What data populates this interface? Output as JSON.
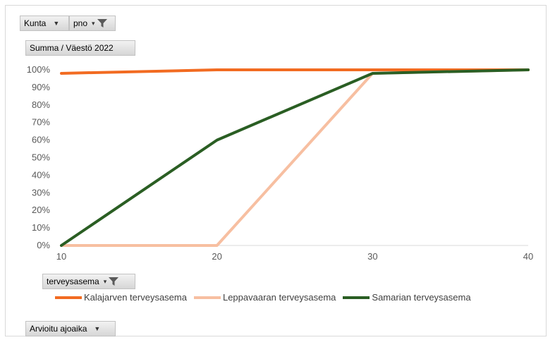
{
  "filters": {
    "kunta": {
      "label": "Kunta"
    },
    "pno": {
      "label": "pno"
    },
    "summa": {
      "label": "Summa  / Väestö 2022"
    },
    "terveysasema": {
      "label": "terveysasema"
    },
    "arvioitu": {
      "label": "Arvioitu ajoaika"
    }
  },
  "icons": {
    "dropdown": "chevron-down-icon",
    "filter": "filter-funnel-icon"
  },
  "chart_data": {
    "type": "line",
    "x": [
      10,
      20,
      30,
      40
    ],
    "x_tick_labels": [
      "10",
      "20",
      "30",
      "40"
    ],
    "y_tick_labels": [
      "0%",
      "10%",
      "20%",
      "30%",
      "40%",
      "50%",
      "60%",
      "70%",
      "80%",
      "90%",
      "100%"
    ],
    "ylim": [
      0,
      1
    ],
    "xlim": [
      10,
      40
    ],
    "grid": false,
    "legend_position": "bottom",
    "series": [
      {
        "name": "Kalajarven terveysasema",
        "color": "#f26b21",
        "values": [
          0.98,
          1.0,
          1.0,
          1.0
        ]
      },
      {
        "name": "Leppavaaran terveysasema",
        "color": "#f7bfa1",
        "values": [
          0.0,
          0.0,
          0.98,
          1.0
        ]
      },
      {
        "name": "Samarian terveysasema",
        "color": "#2a5e23",
        "values": [
          0.0,
          0.6,
          0.98,
          1.0
        ]
      }
    ]
  }
}
